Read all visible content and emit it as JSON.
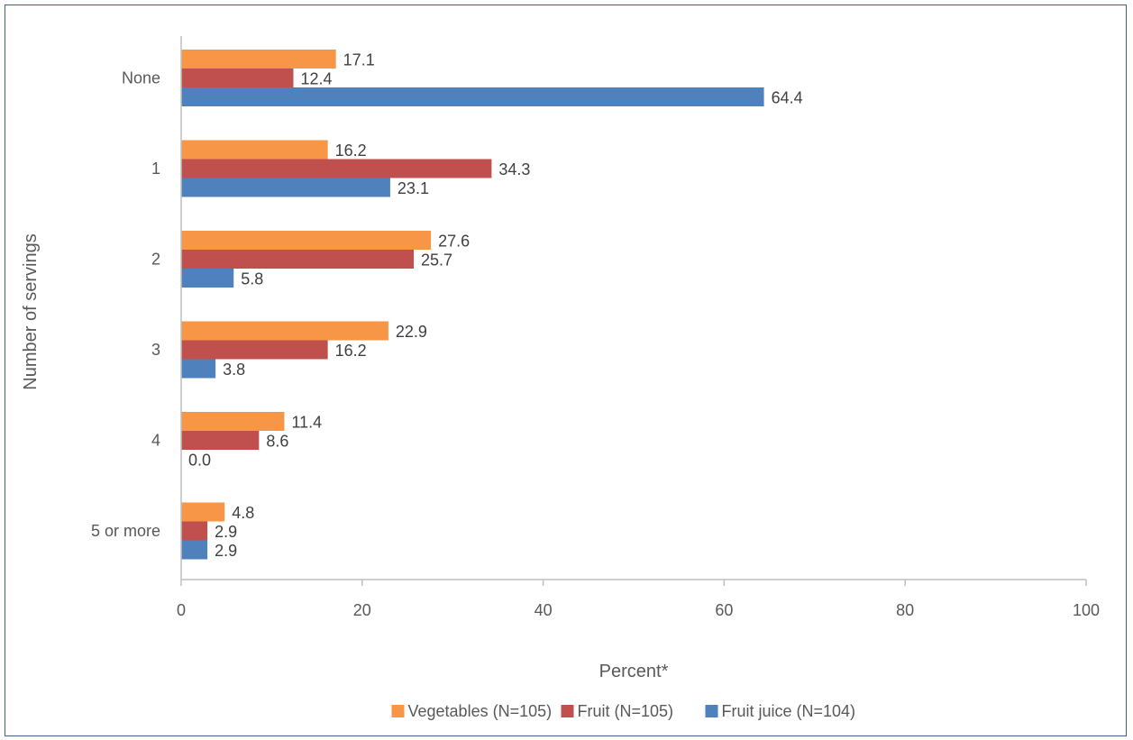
{
  "chart_data": {
    "type": "bar",
    "orientation": "horizontal",
    "categories": [
      "None",
      "1",
      "2",
      "3",
      "4",
      "5 or more"
    ],
    "series": [
      {
        "name": "Vegetables (N=105)",
        "color": "#f79646",
        "values": [
          17.1,
          16.2,
          27.6,
          22.9,
          11.4,
          4.8
        ]
      },
      {
        "name": "Fruit (N=105)",
        "color": "#c0504d",
        "values": [
          12.4,
          34.3,
          25.7,
          16.2,
          8.6,
          2.9
        ]
      },
      {
        "name": "Fruit juice (N=104)",
        "color": "#4f81bd",
        "values": [
          64.4,
          23.1,
          5.8,
          3.8,
          0.0,
          2.9
        ]
      }
    ],
    "xlabel": "Percent*",
    "ylabel": "Number of servings",
    "xlim": [
      0,
      100
    ],
    "xticks": [
      "0",
      "20",
      "40",
      "60",
      "80",
      "100"
    ],
    "legend": "bottom",
    "grid": false
  }
}
